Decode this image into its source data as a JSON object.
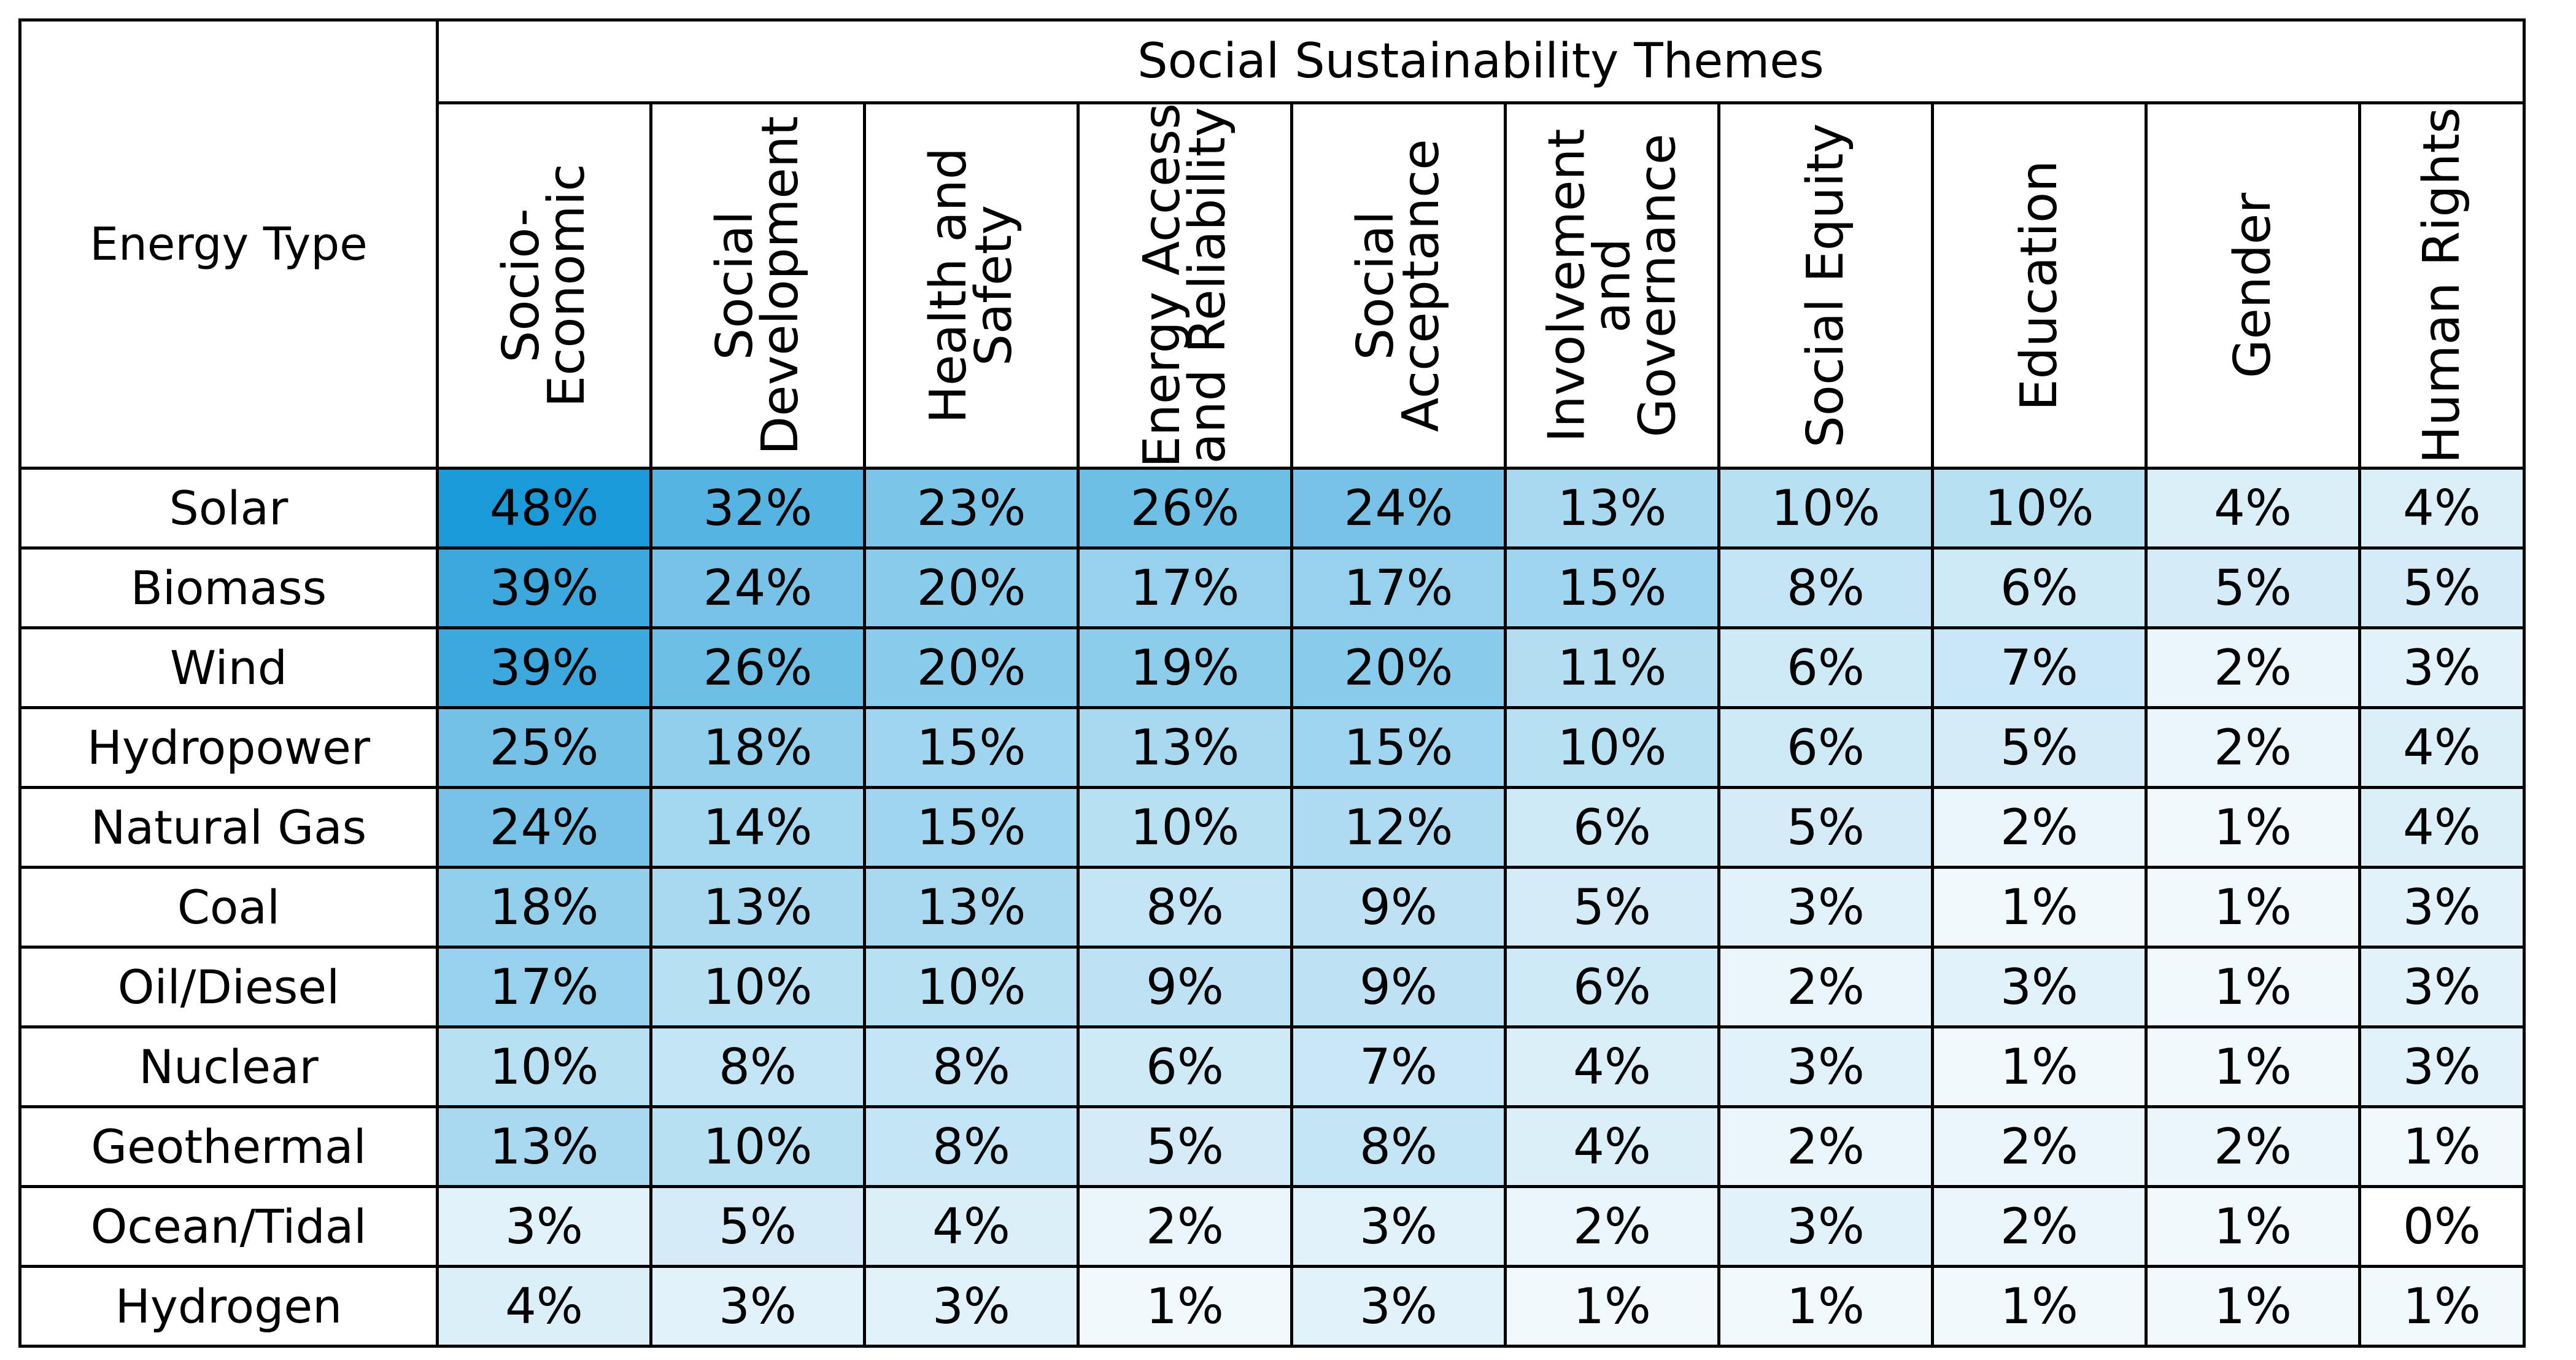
{
  "chart_data": {
    "type": "heatmap",
    "title": "Social Sustainability Themes",
    "row_header": "Energy Type",
    "columns": [
      "Socio-\nEconomic",
      "Social\nDevelopment",
      "Health and\nSafety",
      "Energy Access\nand Reliability",
      "Social\nAcceptance",
      "Involvement\nand\nGovernance",
      "Social Equity",
      "Education",
      "Gender",
      "Human Rights"
    ],
    "rows": [
      "Solar",
      "Biomass",
      "Wind",
      "Hydropower",
      "Natural Gas",
      "Coal",
      "Oil/Diesel",
      "Nuclear",
      "Geothermal",
      "Ocean/Tidal",
      "Hydrogen"
    ],
    "values": [
      [
        48,
        32,
        23,
        26,
        24,
        13,
        10,
        10,
        4,
        4
      ],
      [
        39,
        24,
        20,
        17,
        17,
        15,
        8,
        6,
        5,
        5
      ],
      [
        39,
        26,
        20,
        19,
        20,
        11,
        6,
        7,
        2,
        3
      ],
      [
        25,
        18,
        15,
        13,
        15,
        10,
        6,
        5,
        2,
        4
      ],
      [
        24,
        14,
        15,
        10,
        12,
        6,
        5,
        2,
        1,
        4
      ],
      [
        18,
        13,
        13,
        8,
        9,
        5,
        3,
        1,
        1,
        3
      ],
      [
        17,
        10,
        10,
        9,
        9,
        6,
        2,
        3,
        1,
        3
      ],
      [
        10,
        8,
        8,
        6,
        7,
        4,
        3,
        1,
        1,
        3
      ],
      [
        13,
        10,
        8,
        5,
        8,
        4,
        2,
        2,
        2,
        1
      ],
      [
        3,
        5,
        4,
        2,
        3,
        2,
        3,
        2,
        1,
        0
      ],
      [
        4,
        3,
        3,
        1,
        3,
        1,
        1,
        1,
        1,
        1
      ]
    ],
    "value_suffix": "%",
    "color_min": "#ffffff",
    "color_max": "#1a9ad8",
    "range": [
      0,
      48
    ]
  }
}
